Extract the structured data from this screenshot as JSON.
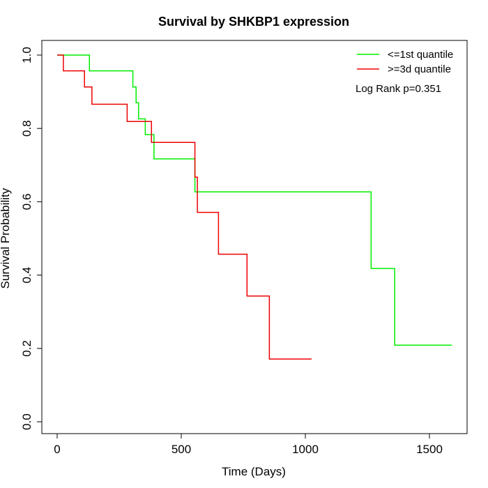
{
  "chart_data": {
    "type": "line",
    "title": "Survival by SHKBP1 expression",
    "xlabel": "Time (Days)",
    "ylabel": "Survival Probability",
    "xlim": [
      0,
      1650
    ],
    "ylim": [
      0,
      1.0
    ],
    "xticks": [
      0,
      500,
      1000,
      1500
    ],
    "yticks": [
      0.0,
      0.2,
      0.4,
      0.6,
      0.8,
      1.0
    ],
    "xtick_labels": [
      "0",
      "500",
      "1000",
      "1500"
    ],
    "ytick_labels": [
      "0.0",
      "0.2",
      "0.4",
      "0.6",
      "0.8",
      "1.0"
    ],
    "grid": false,
    "legend_position": "top-right",
    "annotation": "Log Rank p=0.351",
    "series": [
      {
        "name": "<=1st quantile",
        "color": "#00ee00",
        "step": true,
        "x": [
          0,
          130,
          305,
          318,
          328,
          355,
          390,
          555,
          1265,
          1360,
          1590
        ],
        "y": [
          1.0,
          0.957,
          0.913,
          0.87,
          0.826,
          0.783,
          0.717,
          0.627,
          0.418,
          0.209,
          0.209
        ]
      },
      {
        "name": ">=3d quantile",
        "color": "#ee0000",
        "step": true,
        "x": [
          0,
          25,
          110,
          140,
          282,
          380,
          555,
          565,
          650,
          765,
          855,
          1025
        ],
        "y": [
          1.0,
          0.957,
          0.913,
          0.866,
          0.819,
          0.762,
          0.667,
          0.571,
          0.457,
          0.343,
          0.171,
          0.171
        ]
      }
    ]
  }
}
